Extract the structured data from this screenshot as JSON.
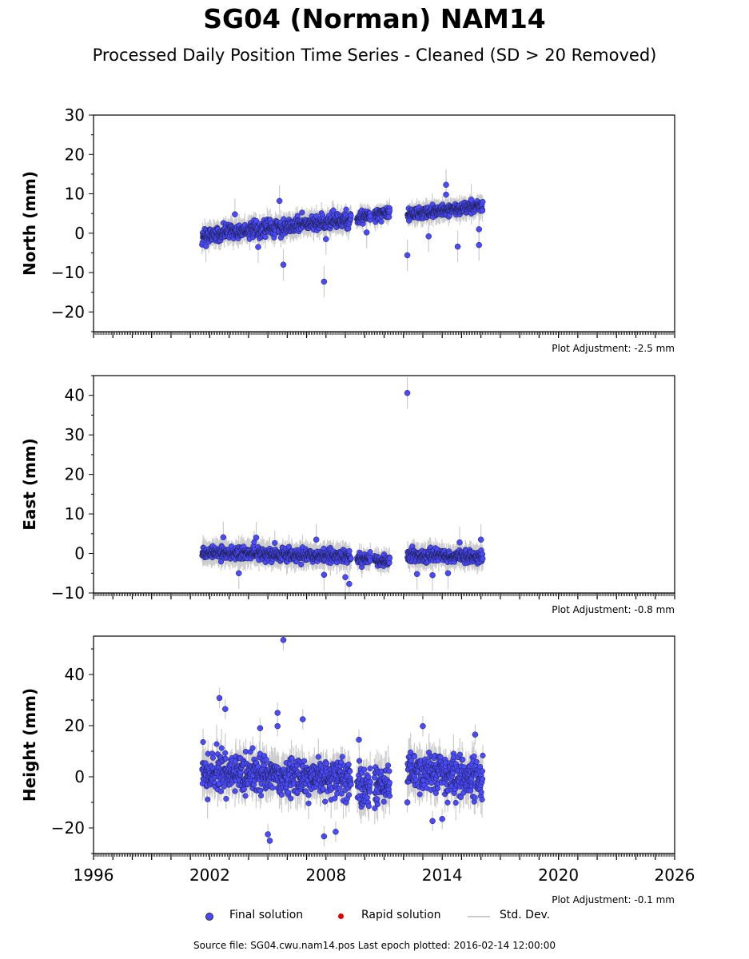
{
  "header": {
    "title": "SG04 (Norman) NAM14",
    "subtitle": "Processed Daily Position Time Series - Cleaned (SD > 20 Removed)"
  },
  "legend": {
    "final": "Final solution",
    "rapid": "Rapid solution",
    "std": "Std. Dev.",
    "final_color": "#4a4aff",
    "rapid_color": "#e00000",
    "std_color": "#cccccc"
  },
  "footer": {
    "source": "Source file: SG04.cwu.nam14.pos  Last epoch plotted: 2016-02-14 12:00:00"
  },
  "chart_data": [
    {
      "type": "scatter",
      "ylabel": "North (mm)",
      "adjustment": "Plot Adjustment: -2.5 mm",
      "xlim": [
        1996,
        2026
      ],
      "ylim": [
        -25,
        30
      ],
      "yticks": [
        -20,
        -10,
        0,
        10,
        20,
        30
      ],
      "xticks": [],
      "series": [
        {
          "name": "Final solution",
          "segments": [
            {
              "x0": 2001.6,
              "x1": 2009.3,
              "y0": -0.5,
              "y1": 3.5,
              "sd": 1.6,
              "err": 2.2
            },
            {
              "x0": 2009.6,
              "x1": 2010.3,
              "y0": 3.8,
              "y1": 4.6,
              "sd": 1.2,
              "err": 1.8
            },
            {
              "x0": 2010.5,
              "x1": 2011.3,
              "y0": 4.6,
              "y1": 5.2,
              "sd": 1.2,
              "err": 1.8
            },
            {
              "x0": 2012.2,
              "x1": 2016.1,
              "y0": 4.8,
              "y1": 7.0,
              "sd": 1.3,
              "err": 2.0
            }
          ],
          "outliers": [
            [
              2005.6,
              8.2
            ],
            [
              2005.8,
              -8
            ],
            [
              2007.9,
              -12.3
            ],
            [
              2004.5,
              -3.5
            ],
            [
              2012.2,
              -5.6
            ],
            [
              2010.1,
              0.2
            ],
            [
              2013.3,
              -0.8
            ],
            [
              2014.2,
              12.3
            ],
            [
              2014.2,
              9.8
            ],
            [
              2014.8,
              -3.4
            ],
            [
              2015.9,
              -3
            ],
            [
              2015.9,
              1
            ],
            [
              2001.8,
              -3.3
            ],
            [
              2008.0,
              -1.5
            ],
            [
              2003.3,
              4.8
            ],
            [
              2015.5,
              8.5
            ]
          ]
        }
      ]
    },
    {
      "type": "scatter",
      "ylabel": "East (mm)",
      "adjustment": "Plot Adjustment: -0.8 mm",
      "xlim": [
        1996,
        2026
      ],
      "ylim": [
        -10,
        45
      ],
      "yticks": [
        -10,
        0,
        10,
        20,
        30,
        40
      ],
      "xticks": [],
      "series": [
        {
          "name": "Final solution",
          "segments": [
            {
              "x0": 2001.6,
              "x1": 2009.3,
              "y0": 0.2,
              "y1": -0.8,
              "sd": 1.4,
              "err": 2.4
            },
            {
              "x0": 2009.6,
              "x1": 2010.3,
              "y0": -1.5,
              "y1": -1.5,
              "sd": 1.2,
              "err": 2.0
            },
            {
              "x0": 2010.5,
              "x1": 2011.3,
              "y0": -1.8,
              "y1": -1.8,
              "sd": 1.2,
              "err": 2.0
            },
            {
              "x0": 2012.2,
              "x1": 2016.1,
              "y0": -0.5,
              "y1": -0.8,
              "sd": 1.5,
              "err": 2.2
            }
          ],
          "outliers": [
            [
              2012.2,
              40.6
            ],
            [
              2003.5,
              -5
            ],
            [
              2007.9,
              -5.4
            ],
            [
              2009.2,
              -7.7
            ],
            [
              2009.0,
              -6
            ],
            [
              2012.7,
              -5.2
            ],
            [
              2013.5,
              -5.5
            ],
            [
              2016.0,
              3.5
            ],
            [
              2007.5,
              3.5
            ],
            [
              2004.4,
              4
            ],
            [
              2002.7,
              4.1
            ],
            [
              2014.3,
              -5
            ],
            [
              2014.9,
              2.8
            ]
          ]
        }
      ]
    },
    {
      "type": "scatter",
      "ylabel": "Height (mm)",
      "adjustment": "Plot Adjustment: -0.1 mm",
      "xlim": [
        1996,
        2026
      ],
      "ylim": [
        -30,
        55
      ],
      "yticks": [
        -20,
        0,
        20,
        40
      ],
      "xticks": [
        1996,
        2002,
        2008,
        2014,
        2020,
        2026
      ],
      "series": [
        {
          "name": "Final solution",
          "segments": [
            {
              "x0": 2001.6,
              "x1": 2009.3,
              "y0": 2.0,
              "y1": -1.0,
              "sd": 6.5,
              "err": 5.5
            },
            {
              "x0": 2009.6,
              "x1": 2010.3,
              "y0": -4.0,
              "y1": -4.0,
              "sd": 6.5,
              "err": 6.0
            },
            {
              "x0": 2010.5,
              "x1": 2011.3,
              "y0": -3.0,
              "y1": -3.0,
              "sd": 6.5,
              "err": 6.0
            },
            {
              "x0": 2012.2,
              "x1": 2016.1,
              "y0": 2.0,
              "y1": 0.0,
              "sd": 6.5,
              "err": 5.5
            }
          ],
          "outliers": [
            [
              2005.8,
              53.5
            ],
            [
              2002.5,
              30.8
            ],
            [
              2002.8,
              26.5
            ],
            [
              2005.5,
              25
            ],
            [
              2005.5,
              19.8
            ],
            [
              2006.8,
              22.5
            ],
            [
              2005.1,
              -25
            ],
            [
              2005.0,
              -22.5
            ],
            [
              2007.9,
              -23.3
            ],
            [
              2008.5,
              -21.5
            ],
            [
              2013.0,
              19.8
            ],
            [
              2015.7,
              16.5
            ],
            [
              2012.2,
              -10
            ],
            [
              2009.7,
              14.5
            ],
            [
              2004.6,
              19
            ],
            [
              2013.5,
              -17.3
            ],
            [
              2014.0,
              -16.5
            ]
          ]
        }
      ]
    }
  ]
}
